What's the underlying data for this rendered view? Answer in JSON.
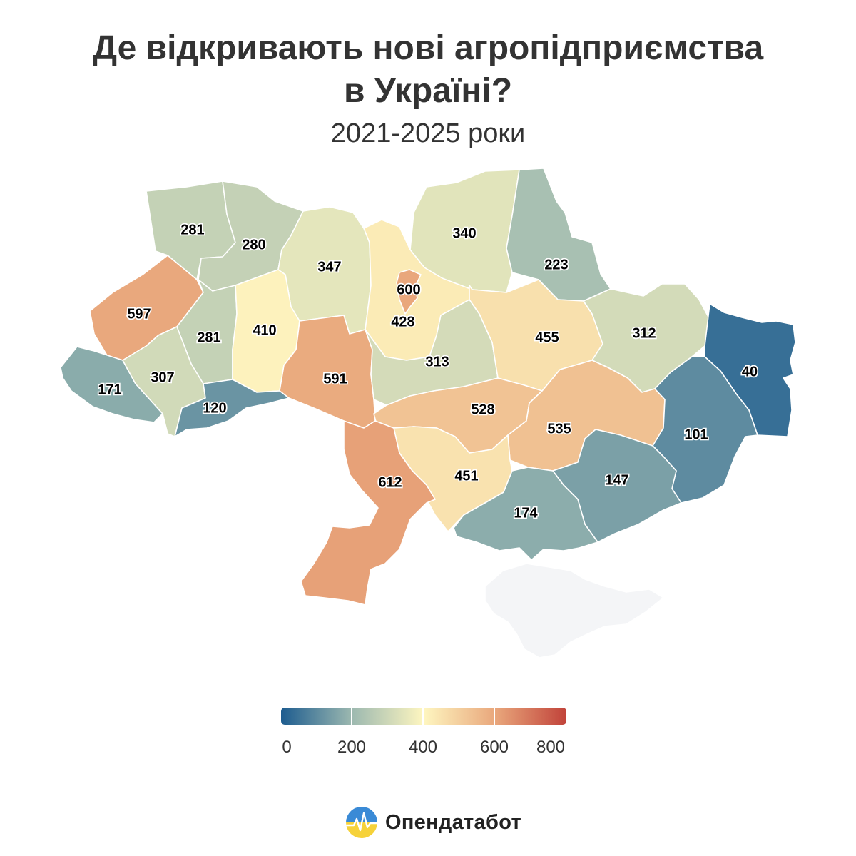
{
  "title_line1": "Де відкривають нові агропідприємства",
  "title_line2": "в Україні?",
  "subtitle": "2021-2025 роки",
  "legend": {
    "min": 0,
    "max": 800,
    "ticks": [
      "0",
      "200",
      "400",
      "600",
      "800"
    ]
  },
  "colors": {
    "low": "#1d5c8f",
    "mid": "#fef6c0",
    "high": "#c1433a",
    "no_data": "#f4f5f7"
  },
  "brand": {
    "name": "Опендатабот"
  },
  "regions": [
    {
      "id": "volyn",
      "value": "281"
    },
    {
      "id": "rivne",
      "value": "280"
    },
    {
      "id": "zhytomyr",
      "value": "347"
    },
    {
      "id": "kyiv-oblast",
      "value": "428"
    },
    {
      "id": "kyiv-city",
      "value": "600"
    },
    {
      "id": "chernihiv",
      "value": "340"
    },
    {
      "id": "sumy",
      "value": "223"
    },
    {
      "id": "lviv",
      "value": "597"
    },
    {
      "id": "ternopil",
      "value": "281"
    },
    {
      "id": "khmelnytskyi",
      "value": "410"
    },
    {
      "id": "vinnytsia",
      "value": "591"
    },
    {
      "id": "cherkasy",
      "value": "313"
    },
    {
      "id": "poltava",
      "value": "455"
    },
    {
      "id": "kharkiv",
      "value": "312"
    },
    {
      "id": "luhansk",
      "value": "40"
    },
    {
      "id": "zakarpattia",
      "value": "171"
    },
    {
      "id": "ivano-frankivsk",
      "value": "307"
    },
    {
      "id": "chernivtsi",
      "value": "120"
    },
    {
      "id": "kirovohrad",
      "value": "528"
    },
    {
      "id": "dnipropetrovsk",
      "value": "535"
    },
    {
      "id": "donetsk",
      "value": "101"
    },
    {
      "id": "zaporizhzhia",
      "value": "147"
    },
    {
      "id": "mykolaiv",
      "value": "451"
    },
    {
      "id": "odesa",
      "value": "612"
    },
    {
      "id": "kherson",
      "value": "174"
    },
    {
      "id": "crimea",
      "value": ""
    }
  ]
}
